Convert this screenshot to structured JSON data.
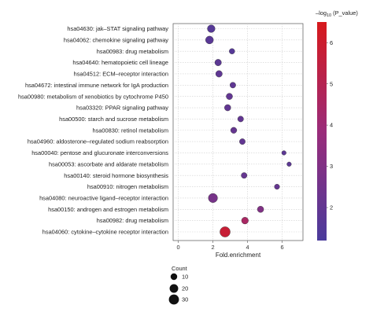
{
  "chart_data": {
    "type": "scatter",
    "xlabel": "Fold.enrichment",
    "x_ticks": [
      0,
      2,
      4,
      6
    ],
    "xlim": [
      -0.3,
      7.2
    ],
    "categories": [
      "hsa04630: jak–STAT signaling pathway",
      "hsa04062: chemokine signaling pathway",
      "hsa00983: drug metabolism",
      "hsa04640: hematopoietic cell lineage",
      "hsa04512: ECM–receptor interaction",
      "hsa04672: intestinal immune network for IgA production",
      "hsa00980: metabolism of xenobiotics by cytochrome P450",
      "hsa03320: PPAR signaling pathway",
      "hsa00500: starch and sucrose metabolism",
      "hsa00830: retinol metabolism",
      "hsa04960: aldosterone–regulated sodium reabsorption",
      "hsa00040: pentose and glucuronate interconversions",
      "hsa00053: ascorbate and aldarate metabolism",
      "hsa00140: steroid hormone biosynthesis",
      "hsa00910: nitrogen metabolism",
      "hsa04080: neuroactive ligand–receptor interaction",
      "hsa00150: androgen and estrogen metabolism",
      "hsa00982: drug metabolism",
      "hsa04060: cytokine–cytokine receptor interaction"
    ],
    "points": [
      {
        "x": 1.9,
        "count": 15,
        "neglogp": 1.6
      },
      {
        "x": 1.8,
        "count": 16,
        "neglogp": 1.7
      },
      {
        "x": 3.1,
        "count": 6,
        "neglogp": 1.6
      },
      {
        "x": 2.3,
        "count": 10,
        "neglogp": 1.8
      },
      {
        "x": 2.35,
        "count": 10,
        "neglogp": 1.9
      },
      {
        "x": 3.15,
        "count": 7,
        "neglogp": 1.9
      },
      {
        "x": 2.95,
        "count": 9,
        "neglogp": 2.0
      },
      {
        "x": 2.85,
        "count": 9,
        "neglogp": 2.0
      },
      {
        "x": 3.6,
        "count": 7,
        "neglogp": 2.0
      },
      {
        "x": 3.2,
        "count": 8,
        "neglogp": 2.1
      },
      {
        "x": 3.7,
        "count": 7,
        "neglogp": 2.0
      },
      {
        "x": 6.1,
        "count": 3,
        "neglogp": 1.8
      },
      {
        "x": 6.4,
        "count": 3,
        "neglogp": 1.8
      },
      {
        "x": 3.8,
        "count": 7,
        "neglogp": 2.1
      },
      {
        "x": 5.7,
        "count": 5,
        "neglogp": 2.1
      },
      {
        "x": 2.0,
        "count": 24,
        "neglogp": 2.7
      },
      {
        "x": 4.75,
        "count": 9,
        "neglogp": 3.0
      },
      {
        "x": 3.85,
        "count": 11,
        "neglogp": 4.5
      },
      {
        "x": 2.7,
        "count": 32,
        "neglogp": 5.8
      }
    ],
    "size_legend": {
      "title": "Count",
      "values": [
        10,
        20,
        30
      ]
    },
    "color_legend": {
      "title_prefix": "–log",
      "title_sub": "10",
      "title_suffix": " (P_value)",
      "range": [
        1.2,
        6.5
      ],
      "ticks": [
        2,
        3,
        4,
        5,
        6
      ],
      "low_color": "#4a3b9c",
      "high_color": "#d7191c"
    },
    "grid": true,
    "legend_placement": "right"
  }
}
